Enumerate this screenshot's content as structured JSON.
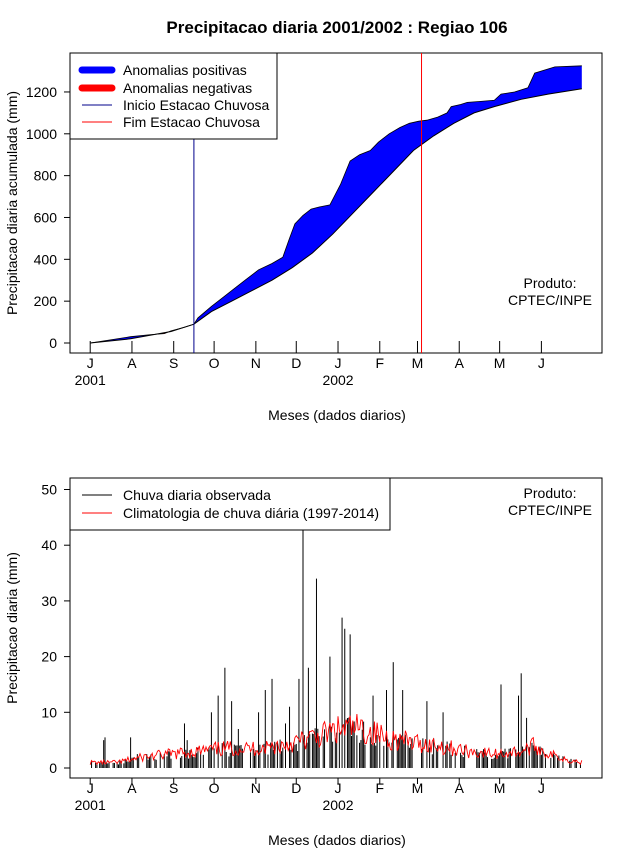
{
  "title": "Precipitacao diaria 2001/2002 : Regiao 106",
  "product_label": [
    "Produto:",
    "CPTEC/INPE"
  ],
  "colors": {
    "positive": "#0000ff",
    "negative": "#ff0000",
    "season_start": "#00008b",
    "season_end": "#ff0000",
    "observed": "#000000",
    "climatology": "#ff0000"
  },
  "chart_data": [
    {
      "type": "area",
      "name": "accumulated",
      "ylabel": "Precipitacao diaria acumulada (mm)",
      "xlabel": "Meses (dados diarios)",
      "x_unit": "days since 2001-07-01",
      "ylim": [
        0,
        1300
      ],
      "yticks": [
        0,
        200,
        400,
        600,
        800,
        1000,
        1200
      ],
      "month_ticks": [
        {
          "day": 0,
          "label": "J"
        },
        {
          "day": 31,
          "label": "A"
        },
        {
          "day": 62,
          "label": "S"
        },
        {
          "day": 92,
          "label": "O"
        },
        {
          "day": 123,
          "label": "N"
        },
        {
          "day": 153,
          "label": "D"
        },
        {
          "day": 184,
          "label": "J"
        },
        {
          "day": 215,
          "label": "F"
        },
        {
          "day": 243,
          "label": "M"
        },
        {
          "day": 274,
          "label": "A"
        },
        {
          "day": 304,
          "label": "M"
        },
        {
          "day": 335,
          "label": "J"
        }
      ],
      "year_labels": [
        {
          "day": 0,
          "label": "2001"
        },
        {
          "day": 184,
          "label": "2002"
        }
      ],
      "xlim": [
        -15,
        380
      ],
      "legend": [
        {
          "label": "Anomalias positivas",
          "key": "positive"
        },
        {
          "label": "Anomalias negativas",
          "key": "negative"
        },
        {
          "label": "Inicio Estacao Chuvosa",
          "key": "season_start"
        },
        {
          "label": "Fim Estacao Chuvosa",
          "key": "season_end"
        }
      ],
      "season_start_day": 77,
      "season_end_day": 246,
      "climatology_cumulative": {
        "x": [
          0,
          30,
          60,
          77,
          90,
          105,
          120,
          135,
          150,
          165,
          180,
          195,
          210,
          225,
          240,
          255,
          270,
          285,
          300,
          320,
          340,
          365
        ],
        "y": [
          0,
          20,
          55,
          90,
          150,
          200,
          250,
          300,
          360,
          430,
          520,
          620,
          720,
          820,
          920,
          990,
          1050,
          1100,
          1130,
          1165,
          1190,
          1215
        ]
      },
      "observed_cumulative": {
        "x": [
          0,
          15,
          30,
          45,
          55,
          60,
          70,
          77,
          80,
          90,
          100,
          105,
          115,
          125,
          135,
          143,
          148,
          152,
          158,
          164,
          170,
          178,
          186,
          193,
          200,
          208,
          214,
          222,
          230,
          237,
          244,
          250,
          258,
          265,
          268,
          275,
          280,
          290,
          300,
          305,
          315,
          325,
          330,
          345,
          365
        ],
        "y": [
          0,
          15,
          30,
          40,
          45,
          58,
          75,
          90,
          120,
          175,
          225,
          250,
          300,
          350,
          380,
          410,
          500,
          570,
          610,
          640,
          650,
          660,
          760,
          870,
          900,
          920,
          960,
          1000,
          1030,
          1050,
          1060,
          1065,
          1080,
          1100,
          1130,
          1140,
          1150,
          1155,
          1160,
          1190,
          1200,
          1220,
          1290,
          1320,
          1325
        ]
      }
    },
    {
      "type": "bar",
      "name": "daily",
      "ylabel": "Precipitacao diaria (mm)",
      "xlabel": "Meses (dados diarios)",
      "x_unit": "days since 2001-07-01",
      "ylim": [
        0,
        50
      ],
      "yticks": [
        0,
        10,
        20,
        30,
        40,
        50
      ],
      "xlim": [
        -15,
        380
      ],
      "legend": [
        {
          "label": "Chuva diaria observada",
          "key": "observed"
        },
        {
          "label": "Climatologia de chuva diária (1997-2014)",
          "key": "climatology"
        }
      ],
      "observed_peaks": {
        "day": [
          10,
          11,
          30,
          35,
          55,
          58,
          70,
          72,
          90,
          95,
          100,
          105,
          110,
          125,
          130,
          135,
          145,
          148,
          155,
          158,
          162,
          168,
          178,
          187,
          189,
          193,
          210,
          220,
          225,
          232,
          250,
          262,
          305,
          318,
          320,
          324
        ],
        "mm": [
          5,
          5.5,
          5.5,
          2.5,
          2.5,
          3,
          8,
          5,
          10,
          13,
          18,
          12,
          7,
          10,
          14,
          16,
          8,
          11,
          16,
          43,
          18,
          34,
          20,
          27,
          25,
          24,
          13,
          14,
          19,
          14,
          12,
          10,
          15,
          13,
          17,
          9
        ]
      },
      "climatology_daily": {
        "x": [
          0,
          20,
          40,
          60,
          80,
          100,
          120,
          140,
          160,
          180,
          190,
          200,
          220,
          240,
          260,
          280,
          300,
          320,
          330,
          340,
          355,
          365
        ],
        "y": [
          1,
          1,
          2,
          2.5,
          3,
          3.5,
          3.5,
          4,
          5,
          6.5,
          7,
          7,
          5.5,
          4.5,
          4,
          3,
          2.5,
          3,
          4,
          2.5,
          1.5,
          1
        ]
      }
    }
  ]
}
